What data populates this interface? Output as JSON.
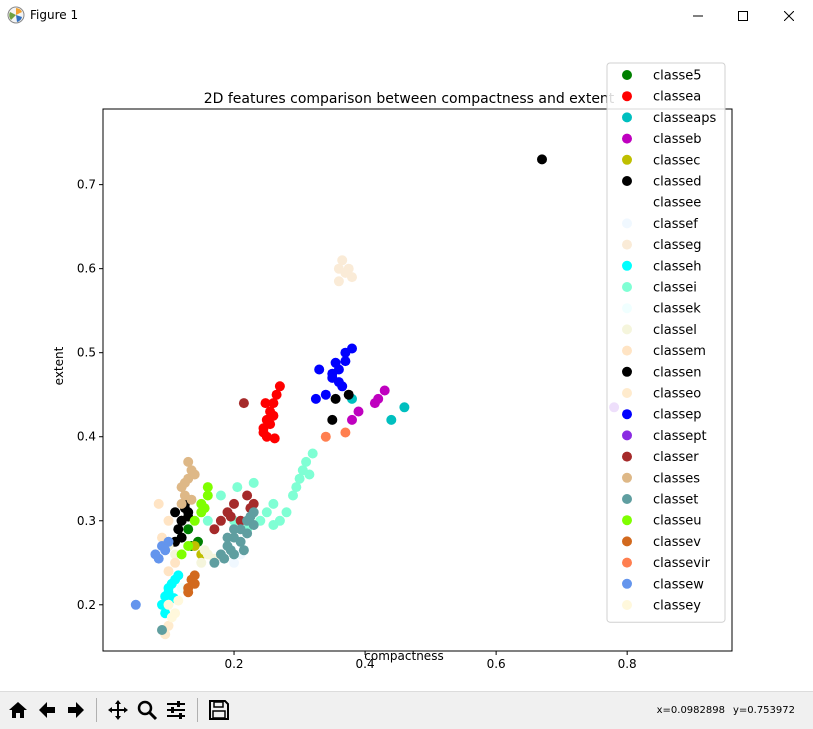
{
  "window": {
    "title": "Figure 1"
  },
  "status": {
    "x_readout": "x=0.0982898",
    "y_readout": "y=0.753972"
  },
  "toolbar": {
    "buttons": [
      "home-icon",
      "back-arrow-icon",
      "forward-arrow-icon",
      "pan-icon",
      "zoom-icon",
      "configure-subplots-icon",
      "save-icon"
    ]
  },
  "chart_data": {
    "type": "scatter",
    "title": "2D features comparison between compactness and extent",
    "xlabel": "compactness",
    "ylabel": "extent",
    "xlim": [
      0.0,
      0.96
    ],
    "ylim": [
      0.145,
      0.79
    ],
    "xticks": [
      0.2,
      0.4,
      0.6,
      0.8
    ],
    "yticks": [
      0.2,
      0.3,
      0.4,
      0.5,
      0.6,
      0.7
    ],
    "grid": false,
    "legend_position": "top-right",
    "series": [
      {
        "name": "classe5",
        "color": "#008000",
        "points": [
          [
            0.12,
            0.28
          ],
          [
            0.135,
            0.27
          ],
          [
            0.145,
            0.275
          ],
          [
            0.13,
            0.29
          ]
        ]
      },
      {
        "name": "classea",
        "color": "#ff0000",
        "points": [
          [
            0.245,
            0.41
          ],
          [
            0.25,
            0.42
          ],
          [
            0.255,
            0.43
          ],
          [
            0.26,
            0.44
          ],
          [
            0.265,
            0.45
          ],
          [
            0.25,
            0.4
          ],
          [
            0.245,
            0.405
          ],
          [
            0.26,
            0.425
          ],
          [
            0.255,
            0.415
          ],
          [
            0.27,
            0.46
          ],
          [
            0.262,
            0.398
          ],
          [
            0.248,
            0.44
          ]
        ]
      },
      {
        "name": "classeaps",
        "color": "#00bfbf",
        "points": [
          [
            0.38,
            0.445
          ],
          [
            0.44,
            0.42
          ],
          [
            0.46,
            0.435
          ]
        ]
      },
      {
        "name": "classeb",
        "color": "#bf00bf",
        "points": [
          [
            0.38,
            0.42
          ],
          [
            0.39,
            0.43
          ],
          [
            0.415,
            0.44
          ],
          [
            0.43,
            0.455
          ],
          [
            0.42,
            0.445
          ]
        ]
      },
      {
        "name": "classec",
        "color": "#bfbf00",
        "points": [
          [
            0.14,
            0.27
          ],
          [
            0.15,
            0.26
          ]
        ]
      },
      {
        "name": "classed",
        "color": "#000000",
        "points": [
          [
            0.67,
            0.73
          ],
          [
            0.355,
            0.445
          ],
          [
            0.375,
            0.45
          ],
          [
            0.35,
            0.42
          ],
          [
            0.11,
            0.31
          ],
          [
            0.12,
            0.3
          ],
          [
            0.125,
            0.315
          ],
          [
            0.115,
            0.29
          ],
          [
            0.12,
            0.28
          ],
          [
            0.13,
            0.305
          ],
          [
            0.11,
            0.275
          ]
        ]
      },
      {
        "name": "classee",
        "color": "#ffffff",
        "points": []
      },
      {
        "name": "classef",
        "color": "#f0f8ff",
        "points": [
          [
            0.2,
            0.25
          ],
          [
            0.21,
            0.26
          ]
        ]
      },
      {
        "name": "classeg",
        "color": "#faebd7",
        "points": [
          [
            0.36,
            0.6
          ],
          [
            0.365,
            0.61
          ],
          [
            0.37,
            0.595
          ],
          [
            0.375,
            0.6
          ],
          [
            0.36,
            0.585
          ],
          [
            0.38,
            0.59
          ]
        ]
      },
      {
        "name": "classeh",
        "color": "#00ffff",
        "points": [
          [
            0.09,
            0.2
          ],
          [
            0.095,
            0.21
          ],
          [
            0.1,
            0.22
          ],
          [
            0.105,
            0.225
          ],
          [
            0.11,
            0.23
          ],
          [
            0.115,
            0.235
          ],
          [
            0.095,
            0.19
          ],
          [
            0.1,
            0.215
          ],
          [
            0.108,
            0.208
          ]
        ]
      },
      {
        "name": "classei",
        "color": "#7fffd4",
        "points": [
          [
            0.16,
            0.3
          ],
          [
            0.18,
            0.33
          ],
          [
            0.2,
            0.3
          ],
          [
            0.22,
            0.29
          ],
          [
            0.24,
            0.3
          ],
          [
            0.25,
            0.31
          ],
          [
            0.26,
            0.32
          ],
          [
            0.27,
            0.3
          ],
          [
            0.28,
            0.31
          ],
          [
            0.29,
            0.33
          ],
          [
            0.295,
            0.34
          ],
          [
            0.3,
            0.35
          ],
          [
            0.305,
            0.36
          ],
          [
            0.31,
            0.37
          ],
          [
            0.315,
            0.355
          ],
          [
            0.32,
            0.38
          ],
          [
            0.23,
            0.345
          ],
          [
            0.205,
            0.34
          ],
          [
            0.26,
            0.295
          ]
        ]
      },
      {
        "name": "classek",
        "color": "#f0ffff",
        "points": [
          [
            0.12,
            0.22
          ]
        ]
      },
      {
        "name": "classel",
        "color": "#f5f5dc",
        "points": [
          [
            0.1,
            0.27
          ],
          [
            0.11,
            0.26
          ],
          [
            0.15,
            0.25
          ],
          [
            0.16,
            0.26
          ],
          [
            0.17,
            0.255
          ],
          [
            0.155,
            0.265
          ]
        ]
      },
      {
        "name": "classem",
        "color": "#ffe4c4",
        "points": [
          [
            0.1,
            0.24
          ],
          [
            0.11,
            0.25
          ],
          [
            0.09,
            0.28
          ],
          [
            0.1,
            0.3
          ],
          [
            0.085,
            0.32
          ]
        ]
      },
      {
        "name": "classen",
        "color": "#000000",
        "points": [
          [
            0.12,
            0.3
          ],
          [
            0.13,
            0.31
          ],
          [
            0.125,
            0.32
          ]
        ]
      },
      {
        "name": "classeo",
        "color": "#ffebcd",
        "points": [
          [
            0.09,
            0.17
          ],
          [
            0.095,
            0.165
          ],
          [
            0.1,
            0.175
          ]
        ]
      },
      {
        "name": "classep",
        "color": "#0000ff",
        "points": [
          [
            0.33,
            0.48
          ],
          [
            0.35,
            0.475
          ],
          [
            0.36,
            0.48
          ],
          [
            0.37,
            0.5
          ],
          [
            0.38,
            0.505
          ],
          [
            0.36,
            0.465
          ],
          [
            0.34,
            0.45
          ],
          [
            0.35,
            0.47
          ],
          [
            0.37,
            0.49
          ],
          [
            0.325,
            0.445
          ],
          [
            0.365,
            0.46
          ],
          [
            0.355,
            0.488
          ]
        ]
      },
      {
        "name": "classept",
        "color": "#8a2be2",
        "points": [
          [
            0.78,
            0.435
          ]
        ]
      },
      {
        "name": "classer",
        "color": "#a52a2a",
        "points": [
          [
            0.17,
            0.29
          ],
          [
            0.18,
            0.3
          ],
          [
            0.19,
            0.31
          ],
          [
            0.2,
            0.32
          ],
          [
            0.21,
            0.3
          ],
          [
            0.22,
            0.33
          ],
          [
            0.23,
            0.32
          ],
          [
            0.215,
            0.44
          ],
          [
            0.195,
            0.305
          ],
          [
            0.225,
            0.315
          ]
        ]
      },
      {
        "name": "classes",
        "color": "#deb887",
        "points": [
          [
            0.12,
            0.34
          ],
          [
            0.13,
            0.35
          ],
          [
            0.125,
            0.33
          ],
          [
            0.135,
            0.36
          ],
          [
            0.12,
            0.32
          ],
          [
            0.13,
            0.37
          ],
          [
            0.14,
            0.355
          ],
          [
            0.125,
            0.345
          ],
          [
            0.135,
            0.325
          ]
        ]
      },
      {
        "name": "classet",
        "color": "#5f9ea0",
        "points": [
          [
            0.17,
            0.25
          ],
          [
            0.18,
            0.26
          ],
          [
            0.19,
            0.27
          ],
          [
            0.2,
            0.28
          ],
          [
            0.21,
            0.29
          ],
          [
            0.22,
            0.3
          ],
          [
            0.23,
            0.31
          ],
          [
            0.19,
            0.28
          ],
          [
            0.2,
            0.26
          ],
          [
            0.21,
            0.275
          ],
          [
            0.22,
            0.285
          ],
          [
            0.23,
            0.295
          ],
          [
            0.2,
            0.29
          ],
          [
            0.185,
            0.255
          ],
          [
            0.195,
            0.265
          ],
          [
            0.215,
            0.265
          ],
          [
            0.225,
            0.305
          ],
          [
            0.09,
            0.17
          ]
        ]
      },
      {
        "name": "classeu",
        "color": "#7fff00",
        "points": [
          [
            0.12,
            0.26
          ],
          [
            0.13,
            0.27
          ],
          [
            0.14,
            0.3
          ],
          [
            0.15,
            0.31
          ],
          [
            0.16,
            0.33
          ],
          [
            0.15,
            0.32
          ],
          [
            0.16,
            0.34
          ],
          [
            0.155,
            0.315
          ]
        ]
      },
      {
        "name": "classev",
        "color": "#d2691e",
        "points": [
          [
            0.13,
            0.22
          ],
          [
            0.135,
            0.23
          ],
          [
            0.14,
            0.235
          ],
          [
            0.13,
            0.215
          ],
          [
            0.14,
            0.225
          ]
        ]
      },
      {
        "name": "classevir",
        "color": "#ff7f50",
        "points": [
          [
            0.34,
            0.4
          ],
          [
            0.37,
            0.405
          ]
        ]
      },
      {
        "name": "classew",
        "color": "#6495ed",
        "points": [
          [
            0.05,
            0.2
          ],
          [
            0.08,
            0.26
          ],
          [
            0.09,
            0.27
          ],
          [
            0.085,
            0.255
          ],
          [
            0.095,
            0.265
          ],
          [
            0.1,
            0.275
          ]
        ]
      },
      {
        "name": "classey",
        "color": "#fff8dc",
        "points": [
          [
            0.1,
            0.2
          ],
          [
            0.11,
            0.19
          ],
          [
            0.105,
            0.185
          ],
          [
            0.115,
            0.205
          ]
        ]
      }
    ]
  }
}
